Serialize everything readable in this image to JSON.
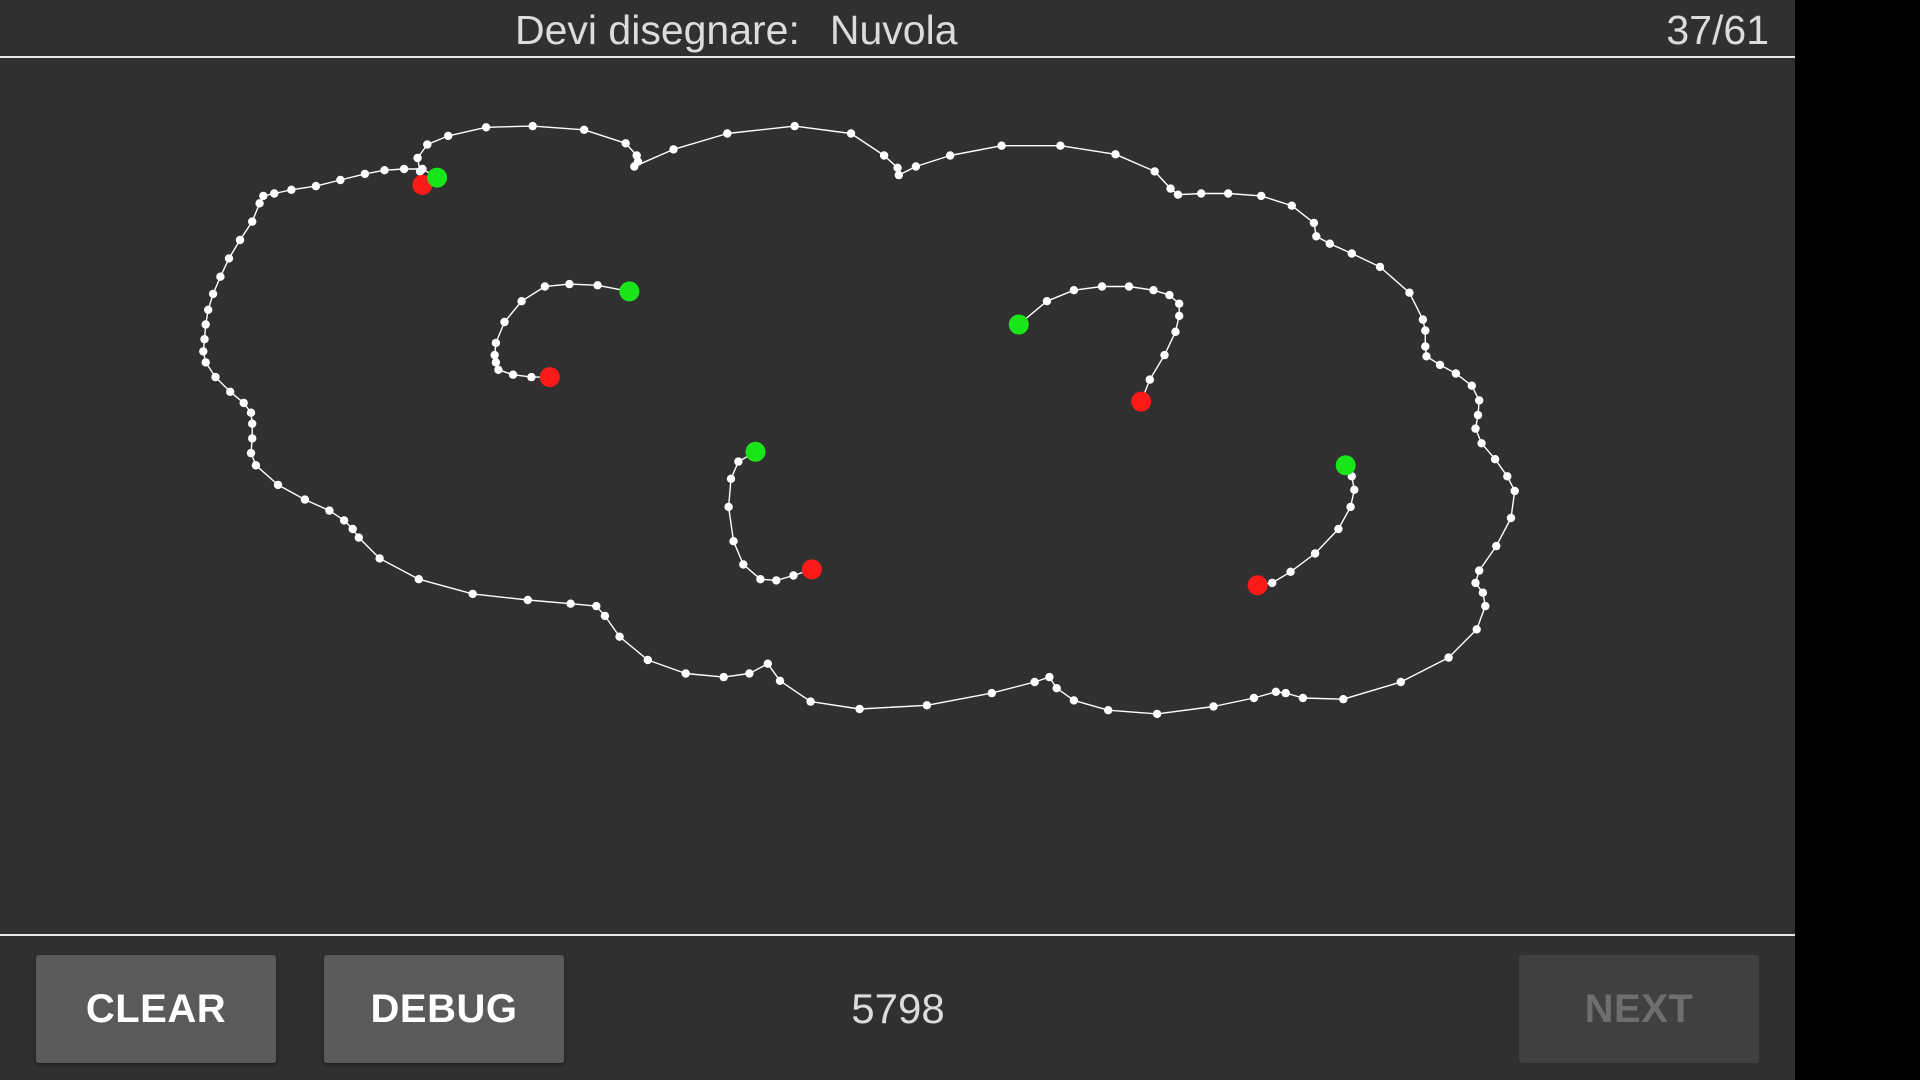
{
  "header": {
    "prompt_label": "Devi disegnare:",
    "prompt_word": "Nuvola",
    "counter": "37/61"
  },
  "footer": {
    "clear_label": "CLEAR",
    "debug_label": "DEBUG",
    "score": "5798",
    "next_label": "NEXT",
    "next_enabled": false
  },
  "colors": {
    "background": "#303030",
    "stroke": "#ffffff",
    "start_marker": "#19e619",
    "end_marker": "#ff1a1a"
  }
}
